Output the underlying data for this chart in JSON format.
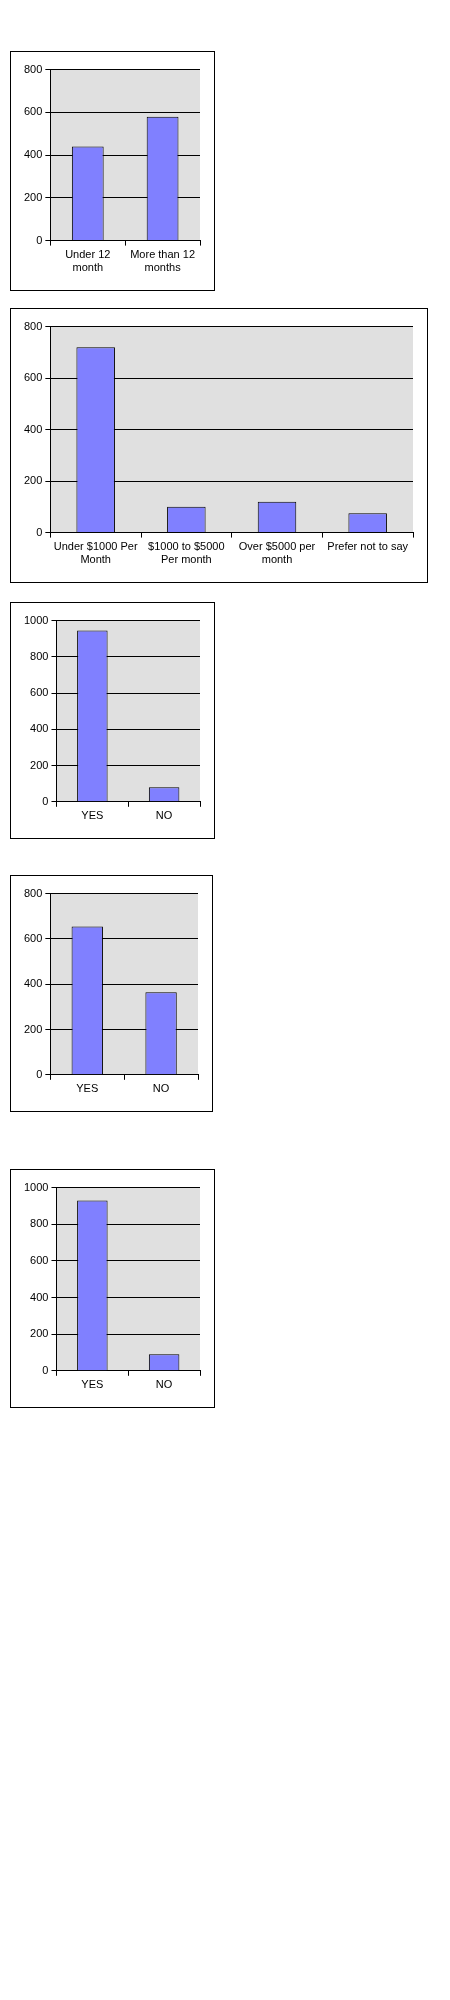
{
  "chart_data": [
    {
      "type": "bar",
      "categories": [
        "Under 12 month",
        "More than 12 months"
      ],
      "values": [
        440,
        580
      ],
      "color": "#8080ff",
      "ylim": [
        0,
        800
      ],
      "yticks": [
        0,
        200,
        400,
        600,
        800
      ],
      "grid": "y"
    },
    {
      "type": "bar",
      "categories": [
        "Under $1000 Per Month",
        "$1000 to $5000 Per month",
        "Over $5000 per month",
        "Prefer not to say"
      ],
      "values": [
        720,
        100,
        120,
        75
      ],
      "color": "#8080ff",
      "ylim": [
        0,
        800
      ],
      "yticks": [
        0,
        200,
        400,
        600,
        800
      ],
      "grid": "y"
    },
    {
      "type": "bar",
      "categories": [
        "YES",
        "NO"
      ],
      "values": [
        945,
        80
      ],
      "color": "#8080ff",
      "ylim": [
        0,
        1000
      ],
      "yticks": [
        0,
        200,
        400,
        600,
        800,
        1000
      ],
      "grid": "y"
    },
    {
      "type": "bar",
      "categories": [
        "YES",
        "NO"
      ],
      "values": [
        655,
        365
      ],
      "color": "#8080ff",
      "ylim": [
        0,
        800
      ],
      "yticks": [
        0,
        200,
        400,
        600,
        800
      ],
      "grid": "y"
    },
    {
      "type": "bar",
      "categories": [
        "YES",
        "NO"
      ],
      "values": [
        930,
        90
      ],
      "color": "#8080ff",
      "ylim": [
        0,
        1000
      ],
      "yticks": [
        0,
        200,
        400,
        600,
        800,
        1000
      ],
      "grid": "y"
    }
  ]
}
